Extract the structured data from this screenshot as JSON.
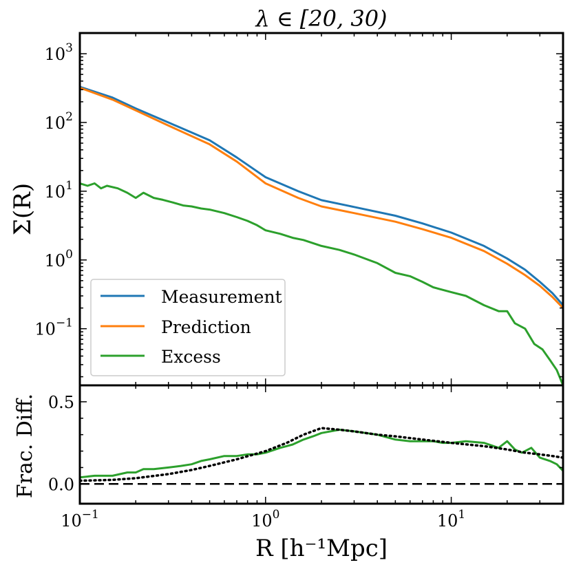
{
  "chart_data": [
    {
      "type": "line",
      "panel": "top",
      "title": "λ ∈ [20, 30)",
      "xlabel": "",
      "ylabel": "Σ(R)",
      "xscale": "log",
      "yscale": "log",
      "xlim": [
        0.1,
        40
      ],
      "ylim": [
        0.015,
        2000
      ],
      "yticks": [
        {
          "value": 1000,
          "base": "10",
          "exp": "3"
        },
        {
          "value": 100,
          "base": "10",
          "exp": "2"
        },
        {
          "value": 10,
          "base": "10",
          "exp": "1"
        },
        {
          "value": 1,
          "base": "10",
          "exp": "0"
        },
        {
          "value": 0.1,
          "base": "10",
          "exp": "−1"
        }
      ],
      "legend": {
        "position": "lower-left",
        "entries": [
          "Measurement",
          "Prediction",
          "Excess"
        ]
      },
      "series": [
        {
          "name": "Measurement",
          "color": "#1f77b4",
          "x": [
            0.1,
            0.15,
            0.2,
            0.3,
            0.5,
            0.7,
            1.0,
            1.5,
            2.0,
            3.0,
            5.0,
            7.0,
            10.0,
            15.0,
            20.0,
            25.0,
            30.0,
            35.0,
            40.0
          ],
          "y": [
            330,
            230,
            160,
            100,
            55,
            31,
            16,
            10,
            7.4,
            5.9,
            4.4,
            3.4,
            2.5,
            1.6,
            1.05,
            0.72,
            0.48,
            0.33,
            0.22
          ]
        },
        {
          "name": "Prediction",
          "color": "#ff7f0e",
          "x": [
            0.1,
            0.15,
            0.2,
            0.3,
            0.5,
            0.7,
            1.0,
            1.5,
            2.0,
            3.0,
            5.0,
            7.0,
            10.0,
            15.0,
            20.0,
            25.0,
            30.0,
            35.0,
            40.0
          ],
          "y": [
            320,
            215,
            150,
            90,
            48,
            27,
            13,
            8.0,
            6.0,
            4.8,
            3.6,
            2.8,
            2.1,
            1.35,
            0.88,
            0.6,
            0.42,
            0.29,
            0.2
          ]
        },
        {
          "name": "Excess",
          "color": "#2ca02c",
          "x": [
            0.1,
            0.11,
            0.12,
            0.13,
            0.14,
            0.16,
            0.18,
            0.2,
            0.22,
            0.25,
            0.28,
            0.32,
            0.36,
            0.4,
            0.45,
            0.5,
            0.6,
            0.7,
            0.8,
            0.9,
            1.0,
            1.2,
            1.4,
            1.6,
            2.0,
            2.5,
            3.0,
            4.0,
            5.0,
            6.0,
            7.0,
            8.0,
            10.0,
            12.0,
            15.0,
            18.0,
            20.0,
            22.0,
            25.0,
            28.0,
            31.0,
            34.0,
            37.0,
            40.0
          ],
          "y": [
            13,
            12,
            13,
            11,
            12,
            11,
            9.5,
            8,
            9.5,
            8,
            7.5,
            6.8,
            6.2,
            6.0,
            5.6,
            5.4,
            4.8,
            4.2,
            3.7,
            3.2,
            2.7,
            2.4,
            2.1,
            1.95,
            1.6,
            1.4,
            1.2,
            0.9,
            0.65,
            0.58,
            0.48,
            0.4,
            0.34,
            0.3,
            0.22,
            0.18,
            0.18,
            0.12,
            0.1,
            0.06,
            0.05,
            0.035,
            0.025,
            0.015
          ]
        }
      ]
    },
    {
      "type": "line",
      "panel": "bottom",
      "title": "",
      "xlabel": "R [h⁻¹Mpc]",
      "ylabel": "Frac. Diff.",
      "xscale": "log",
      "yscale": "linear",
      "xlim": [
        0.1,
        40
      ],
      "ylim": [
        -0.12,
        0.6
      ],
      "yticks": [
        0.0,
        0.5
      ],
      "ytick_labels": [
        "0.0",
        "0.5"
      ],
      "xticks": [
        {
          "value": 0.1,
          "base": "10",
          "exp": "−1"
        },
        {
          "value": 1,
          "base": "10",
          "exp": "0"
        },
        {
          "value": 10,
          "base": "10",
          "exp": "1"
        }
      ],
      "series": [
        {
          "name": "Excess fraction",
          "style": "solid",
          "color": "#2ca02c",
          "x": [
            0.1,
            0.12,
            0.15,
            0.18,
            0.2,
            0.22,
            0.25,
            0.3,
            0.35,
            0.4,
            0.45,
            0.5,
            0.6,
            0.7,
            0.8,
            0.9,
            1.0,
            1.2,
            1.4,
            1.6,
            1.8,
            2.0,
            2.5,
            3.0,
            4.0,
            5.0,
            6.0,
            7.0,
            8.0,
            9.0,
            10.0,
            12.0,
            15.0,
            18.0,
            20.0,
            22.0,
            24.0,
            27.0,
            30.0,
            34.0,
            37.0,
            40.0
          ],
          "y": [
            0.04,
            0.05,
            0.05,
            0.07,
            0.07,
            0.09,
            0.09,
            0.1,
            0.11,
            0.12,
            0.14,
            0.15,
            0.17,
            0.17,
            0.18,
            0.18,
            0.19,
            0.22,
            0.24,
            0.27,
            0.29,
            0.31,
            0.33,
            0.32,
            0.3,
            0.27,
            0.26,
            0.26,
            0.26,
            0.25,
            0.25,
            0.26,
            0.25,
            0.22,
            0.26,
            0.21,
            0.19,
            0.22,
            0.16,
            0.14,
            0.12,
            0.08
          ]
        },
        {
          "name": "Prediction fraction",
          "style": "dotted",
          "color": "#000000",
          "x": [
            0.1,
            0.15,
            0.2,
            0.3,
            0.4,
            0.5,
            0.7,
            1.0,
            1.3,
            1.6,
            2.0,
            2.5,
            3.0,
            4.0,
            5.0,
            7.0,
            10.0,
            15.0,
            20.0,
            25.0,
            30.0,
            35.0,
            40.0
          ],
          "y": [
            0.02,
            0.025,
            0.035,
            0.06,
            0.085,
            0.11,
            0.15,
            0.2,
            0.25,
            0.3,
            0.34,
            0.33,
            0.32,
            0.3,
            0.29,
            0.27,
            0.25,
            0.23,
            0.21,
            0.19,
            0.18,
            0.17,
            0.16
          ]
        },
        {
          "name": "Zero line",
          "style": "dashed",
          "color": "#000000",
          "x": [
            0.1,
            40
          ],
          "y": [
            0.0,
            0.0
          ]
        }
      ]
    }
  ]
}
